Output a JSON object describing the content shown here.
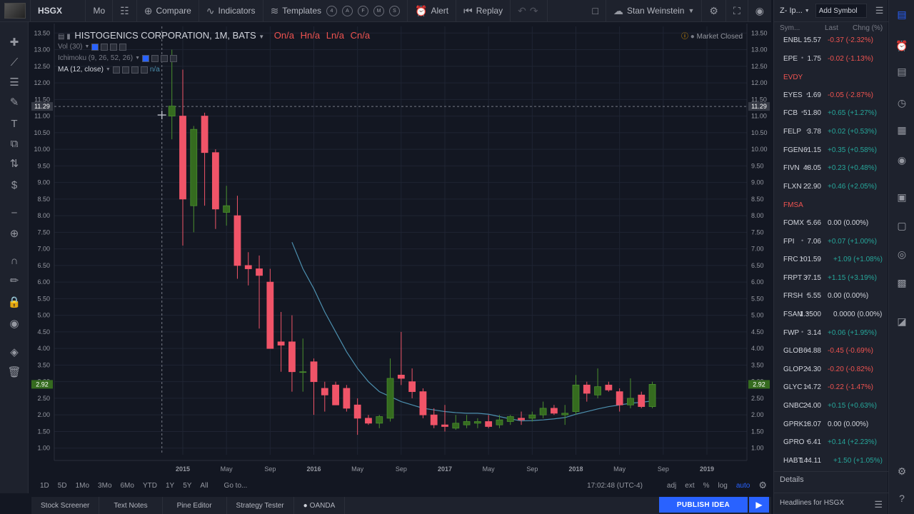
{
  "topbar": {
    "symbol": "HSGX",
    "interval": "Mo",
    "compare": "Compare",
    "indicators": "Indicators",
    "templates": "Templates",
    "template_hotkeys": [
      "4",
      "A",
      "F",
      "M",
      "S"
    ],
    "alert": "Alert",
    "replay": "Replay",
    "layout_name": "Stan Weinstein"
  },
  "legend": {
    "title": "HISTOGENICS CORPORATION, 1M, BATS",
    "ohlc": [
      "O",
      "n/a",
      "H",
      "n/a",
      "L",
      "n/a",
      "C",
      "n/a"
    ],
    "market_status": "Market Closed",
    "vol": "Vol (30)",
    "ichimoku": "Ichimoku (9, 26, 52, 26)",
    "ma": "MA (12, close)",
    "ma_value": "n/a"
  },
  "chart_data": {
    "type": "candlestick",
    "symbol": "HSGX",
    "interval": "1M",
    "y_ticks": [
      1.0,
      1.5,
      2.0,
      2.5,
      3.0,
      3.5,
      4.0,
      4.5,
      5.0,
      5.5,
      6.0,
      6.5,
      7.0,
      7.5,
      8.0,
      8.5,
      9.0,
      9.5,
      10.0,
      10.5,
      11.0,
      11.5,
      12.0,
      12.5,
      13.0,
      13.5
    ],
    "ylim": [
      0.8,
      13.7
    ],
    "x_tick_labels": [
      "2015",
      "May",
      "Sep",
      "2016",
      "May",
      "Sep",
      "2017",
      "May",
      "Sep",
      "2018",
      "May",
      "Sep",
      "2019"
    ],
    "x_tick_month_index": [
      3,
      7,
      11,
      15,
      19,
      23,
      27,
      31,
      35,
      39,
      43,
      47,
      51
    ],
    "crosshair_price": "11.29",
    "last_price": "2.92",
    "candles": [
      {
        "m": 2,
        "o": 11.0,
        "h": 13.0,
        "l": 10.3,
        "c": 11.3
      },
      {
        "m": 3,
        "o": 11.0,
        "h": 12.4,
        "l": 7.1,
        "c": 8.5
      },
      {
        "m": 4,
        "o": 8.3,
        "h": 10.7,
        "l": 7.5,
        "c": 10.6
      },
      {
        "m": 5,
        "o": 11.0,
        "h": 11.1,
        "l": 8.3,
        "c": 9.9
      },
      {
        "m": 6,
        "o": 9.9,
        "h": 10.0,
        "l": 7.6,
        "c": 8.2
      },
      {
        "m": 7,
        "o": 8.1,
        "h": 8.9,
        "l": 7.7,
        "c": 8.3
      },
      {
        "m": 8,
        "o": 8.0,
        "h": 8.6,
        "l": 6.1,
        "c": 6.5
      },
      {
        "m": 9,
        "o": 6.5,
        "h": 6.9,
        "l": 5.9,
        "c": 6.4
      },
      {
        "m": 10,
        "o": 6.4,
        "h": 6.8,
        "l": 4.6,
        "c": 6.2
      },
      {
        "m": 11,
        "o": 6.0,
        "h": 6.4,
        "l": 4.0,
        "c": 4.0
      },
      {
        "m": 12,
        "o": 4.2,
        "h": 5.1,
        "l": 3.3,
        "c": 4.1
      },
      {
        "m": 13,
        "o": 4.2,
        "h": 5.0,
        "l": 2.7,
        "c": 3.3
      },
      {
        "m": 14,
        "o": 3.3,
        "h": 4.3,
        "l": 2.7,
        "c": 3.3
      },
      {
        "m": 15,
        "o": 3.6,
        "h": 3.7,
        "l": 2.0,
        "c": 3.0
      },
      {
        "m": 16,
        "o": 2.8,
        "h": 3.0,
        "l": 2.1,
        "c": 2.6
      },
      {
        "m": 17,
        "o": 2.9,
        "h": 3.0,
        "l": 2.3,
        "c": 2.3
      },
      {
        "m": 18,
        "o": 2.8,
        "h": 2.9,
        "l": 2.1,
        "c": 2.2
      },
      {
        "m": 19,
        "o": 2.3,
        "h": 2.5,
        "l": 1.4,
        "c": 1.9
      },
      {
        "m": 20,
        "o": 1.9,
        "h": 2.0,
        "l": 1.7,
        "c": 1.75
      },
      {
        "m": 21,
        "o": 1.75,
        "h": 2.0,
        "l": 1.6,
        "c": 1.95
      },
      {
        "m": 22,
        "o": 1.9,
        "h": 3.7,
        "l": 1.8,
        "c": 3.1
      },
      {
        "m": 23,
        "o": 3.2,
        "h": 4.5,
        "l": 2.9,
        "c": 3.1
      },
      {
        "m": 24,
        "o": 3.0,
        "h": 3.4,
        "l": 2.5,
        "c": 2.7
      },
      {
        "m": 25,
        "o": 2.7,
        "h": 2.8,
        "l": 1.9,
        "c": 2.0
      },
      {
        "m": 26,
        "o": 2.0,
        "h": 2.2,
        "l": 1.6,
        "c": 1.7
      },
      {
        "m": 27,
        "o": 1.7,
        "h": 2.3,
        "l": 1.5,
        "c": 1.65
      },
      {
        "m": 28,
        "o": 1.6,
        "h": 2.0,
        "l": 1.55,
        "c": 1.75
      },
      {
        "m": 29,
        "o": 1.7,
        "h": 2.0,
        "l": 1.6,
        "c": 1.8
      },
      {
        "m": 30,
        "o": 1.75,
        "h": 1.9,
        "l": 1.6,
        "c": 1.8
      },
      {
        "m": 31,
        "o": 1.8,
        "h": 2.0,
        "l": 1.6,
        "c": 1.65
      },
      {
        "m": 32,
        "o": 1.7,
        "h": 2.0,
        "l": 1.6,
        "c": 1.85
      },
      {
        "m": 33,
        "o": 1.8,
        "h": 2.0,
        "l": 1.7,
        "c": 1.95
      },
      {
        "m": 34,
        "o": 1.9,
        "h": 2.1,
        "l": 1.7,
        "c": 1.85
      },
      {
        "m": 35,
        "o": 1.9,
        "h": 2.1,
        "l": 1.8,
        "c": 2.0
      },
      {
        "m": 36,
        "o": 2.0,
        "h": 2.4,
        "l": 1.9,
        "c": 2.2
      },
      {
        "m": 37,
        "o": 2.2,
        "h": 2.3,
        "l": 2.0,
        "c": 2.05
      },
      {
        "m": 38,
        "o": 2.0,
        "h": 2.3,
        "l": 1.7,
        "c": 2.05
      },
      {
        "m": 39,
        "o": 2.1,
        "h": 3.2,
        "l": 2.0,
        "c": 2.9
      },
      {
        "m": 40,
        "o": 2.9,
        "h": 3.0,
        "l": 2.4,
        "c": 2.65
      },
      {
        "m": 41,
        "o": 2.6,
        "h": 3.4,
        "l": 2.5,
        "c": 2.85
      },
      {
        "m": 42,
        "o": 2.9,
        "h": 3.0,
        "l": 2.7,
        "c": 2.75
      },
      {
        "m": 43,
        "o": 2.7,
        "h": 2.8,
        "l": 2.1,
        "c": 2.3
      },
      {
        "m": 44,
        "o": 2.3,
        "h": 3.1,
        "l": 2.2,
        "c": 2.5
      },
      {
        "m": 45,
        "o": 2.6,
        "h": 2.7,
        "l": 2.2,
        "c": 2.25
      },
      {
        "m": 46,
        "o": 2.25,
        "h": 3.0,
        "l": 2.2,
        "c": 2.92
      }
    ],
    "ma12": [
      [
        13,
        7.2
      ],
      [
        14,
        6.4
      ],
      [
        15,
        5.8
      ],
      [
        16,
        5.1
      ],
      [
        17,
        4.5
      ],
      [
        18,
        3.9
      ],
      [
        19,
        3.4
      ],
      [
        20,
        3.0
      ],
      [
        21,
        2.7
      ],
      [
        22,
        2.55
      ],
      [
        23,
        2.4
      ],
      [
        24,
        2.3
      ],
      [
        25,
        2.2
      ],
      [
        26,
        2.15
      ],
      [
        27,
        2.1
      ],
      [
        28,
        2.07
      ],
      [
        29,
        2.05
      ],
      [
        30,
        2.05
      ],
      [
        31,
        2.02
      ],
      [
        32,
        1.95
      ],
      [
        33,
        1.88
      ],
      [
        34,
        1.82
      ],
      [
        35,
        1.83
      ],
      [
        36,
        1.85
      ],
      [
        37,
        1.88
      ],
      [
        38,
        1.92
      ],
      [
        39,
        2.02
      ],
      [
        40,
        2.1
      ],
      [
        41,
        2.18
      ],
      [
        42,
        2.25
      ],
      [
        43,
        2.3
      ],
      [
        44,
        2.35
      ],
      [
        45,
        2.38
      ],
      [
        46,
        2.42
      ]
    ]
  },
  "range_bar": {
    "ranges": [
      "1D",
      "5D",
      "1Mo",
      "3Mo",
      "6Mo",
      "YTD",
      "1Y",
      "5Y",
      "All"
    ],
    "goto": "Go to...",
    "clock": "17:02:48 (UTC-4)",
    "options": [
      "adj",
      "ext",
      "%",
      "log",
      "auto"
    ]
  },
  "footer": {
    "tabs": [
      "Stock Screener",
      "Text Notes",
      "Pine Editor",
      "Strategy Tester",
      "OANDA"
    ],
    "publish": "PUBLISH IDEA"
  },
  "watchlist": {
    "list_name": "Z- Ip...",
    "add_symbol": "Add Symbol",
    "col_sym": "Sym...",
    "col_last": "Last",
    "col_chg": "Chng (%)",
    "rows": [
      {
        "type": "row",
        "sym": "ENBL",
        "last": "15.57",
        "chg": "-0.37 (-2.32%)",
        "dir": "down"
      },
      {
        "type": "row",
        "sym": "EPE",
        "last": "1.75",
        "chg": "-0.02 (-1.13%)",
        "dir": "down"
      },
      {
        "type": "section",
        "sym": "EVDY"
      },
      {
        "type": "row",
        "sym": "EYES",
        "last": "1.69",
        "chg": "-0.05 (-2.87%)",
        "dir": "down"
      },
      {
        "type": "row",
        "sym": "FCB",
        "last": "51.80",
        "chg": "+0.65 (+1.27%)",
        "dir": "up"
      },
      {
        "type": "row",
        "sym": "FELP",
        "last": "3.78",
        "chg": "+0.02 (+0.53%)",
        "dir": "up"
      },
      {
        "type": "row",
        "sym": "FGEN",
        "last": "61.15",
        "chg": "+0.35 (+0.58%)",
        "dir": "up"
      },
      {
        "type": "row",
        "sym": "FIVN",
        "last": "48.05",
        "chg": "+0.23 (+0.48%)",
        "dir": "up"
      },
      {
        "type": "row",
        "sym": "FLXN",
        "last": "22.90",
        "chg": "+0.46 (+2.05%)",
        "dir": "up"
      },
      {
        "type": "section",
        "sym": "FMSA"
      },
      {
        "type": "row",
        "sym": "FOMX",
        "last": "5.66",
        "chg": "0.00 (0.00%)",
        "dir": "flat"
      },
      {
        "type": "row",
        "sym": "FPI",
        "last": "7.06",
        "chg": "+0.07 (+1.00%)",
        "dir": "up"
      },
      {
        "type": "row",
        "sym": "FRC",
        "last": "101.59",
        "chg": "+1.09 (+1.08%)",
        "dir": "up"
      },
      {
        "type": "row",
        "sym": "FRPT",
        "last": "37.15",
        "chg": "+1.15 (+3.19%)",
        "dir": "up"
      },
      {
        "type": "row",
        "sym": "FRSH",
        "last": "5.55",
        "chg": "0.00 (0.00%)",
        "dir": "flat"
      },
      {
        "type": "row",
        "sym": "FSAM",
        "last": "1.3500",
        "chg": "0.0000 (0.00%)",
        "dir": "flat"
      },
      {
        "type": "row",
        "sym": "FWP",
        "last": "3.14",
        "chg": "+0.06 (+1.95%)",
        "dir": "up"
      },
      {
        "type": "row",
        "sym": "GLOB",
        "last": "64.88",
        "chg": "-0.45 (-0.69%)",
        "dir": "down"
      },
      {
        "type": "row",
        "sym": "GLOP",
        "last": "24.30",
        "chg": "-0.20 (-0.82%)",
        "dir": "down"
      },
      {
        "type": "row",
        "sym": "GLYC",
        "last": "14.72",
        "chg": "-0.22 (-1.47%)",
        "dir": "down"
      },
      {
        "type": "row",
        "sym": "GNBC",
        "last": "24.00",
        "chg": "+0.15 (+0.63%)",
        "dir": "up"
      },
      {
        "type": "row",
        "sym": "GPRK",
        "last": "18.07",
        "chg": "0.00 (0.00%)",
        "dir": "flat"
      },
      {
        "type": "row",
        "sym": "GPRO",
        "last": "6.41",
        "chg": "+0.14 (+2.23%)",
        "dir": "up"
      },
      {
        "type": "row",
        "sym": "HABT",
        "last": "144.11",
        "chg": "+1.50 (+1.05%)",
        "dir": "up"
      }
    ],
    "details": "Details",
    "headlines": "Headlines for HSGX"
  },
  "colors": {
    "up": "#26a69a",
    "up_body": "#356b1f",
    "down": "#ef5350",
    "down_body": "#f05468",
    "flat": "#d1d4dc",
    "ma_line": "#4c8fae",
    "accent": "#2962ff"
  }
}
